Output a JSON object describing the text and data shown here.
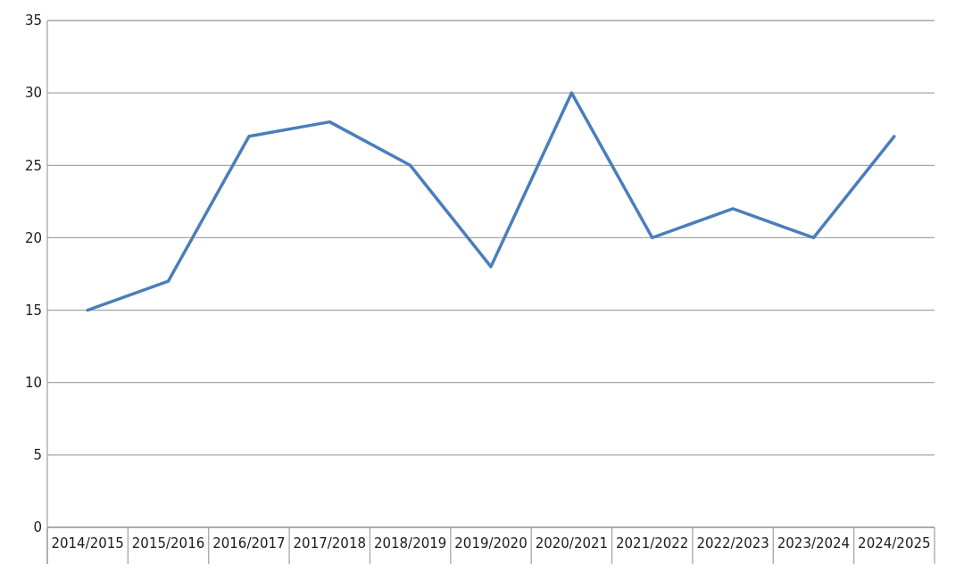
{
  "chart_data": {
    "type": "line",
    "categories": [
      "2014/2015",
      "2015/2016",
      "2016/2017",
      "2017/2018",
      "2018/2019",
      "2019/2020",
      "2020/2021",
      "2021/2022",
      "2022/2023",
      "2023/2024",
      "2024/2025"
    ],
    "series": [
      {
        "color": "#4a7ebb",
        "values": [
          15,
          17,
          27,
          28,
          25,
          18,
          30,
          20,
          22,
          20,
          27
        ]
      }
    ],
    "ylim": [
      0,
      35
    ],
    "yticks": [
      0,
      5,
      10,
      15,
      20,
      25,
      30,
      35
    ],
    "grid": "y",
    "marker": "none",
    "line_style": "solid"
  }
}
